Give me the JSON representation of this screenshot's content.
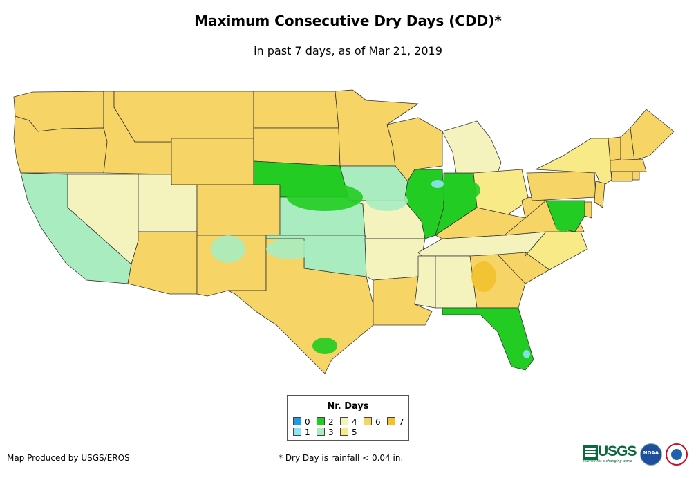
{
  "title": "Maximum Consecutive Dry Days (CDD)*",
  "subtitle": "in past 7 days, as of Mar 21, 2019",
  "legend": {
    "title": "Nr. Days",
    "classes": [
      {
        "label": "0",
        "color": "#1e9be8"
      },
      {
        "label": "1",
        "color": "#8fe3f7"
      },
      {
        "label": "2",
        "color": "#22cc22"
      },
      {
        "label": "3",
        "color": "#a8ecc0"
      },
      {
        "label": "4",
        "color": "#f5f3bd"
      },
      {
        "label": "5",
        "color": "#f8ea86"
      },
      {
        "label": "6",
        "color": "#f6d465"
      },
      {
        "label": "7",
        "color": "#f2c12c"
      }
    ]
  },
  "credit": "Map Produced by USGS/EROS",
  "footnote": "* Dry Day is rainfall < 0.04 in.",
  "logos": {
    "usgs": "USGS",
    "usgs_tagline": "science for a changing world",
    "noaa": "NOAA"
  },
  "map": {
    "dominant_class_by_state": {
      "WA": "6",
      "OR": "6",
      "CA": "3",
      "NV": "4",
      "ID": "6",
      "MT": "6",
      "WY": "6",
      "UT": "4",
      "CO": "6",
      "AZ": "6",
      "NM": "6",
      "ND": "6",
      "SD": "6",
      "NE": "2",
      "KS": "3",
      "OK": "3",
      "TX": "6",
      "MN": "6",
      "IA": "3",
      "MO": "4",
      "AR": "4",
      "LA": "6",
      "WI": "6",
      "IL": "2",
      "IN": "2",
      "MI": "4",
      "OH": "5",
      "KY": "6",
      "TN": "4",
      "MS": "4",
      "AL": "4",
      "GA": "6",
      "FL": "2",
      "SC": "6",
      "NC": "5",
      "VA": "6",
      "WV": "6",
      "PA": "6",
      "NY": "5",
      "VT": "6",
      "NH": "6",
      "ME": "6",
      "MA": "6",
      "CT": "6",
      "RI": "6",
      "NJ": "6",
      "DE": "6",
      "MD": "2"
    }
  }
}
